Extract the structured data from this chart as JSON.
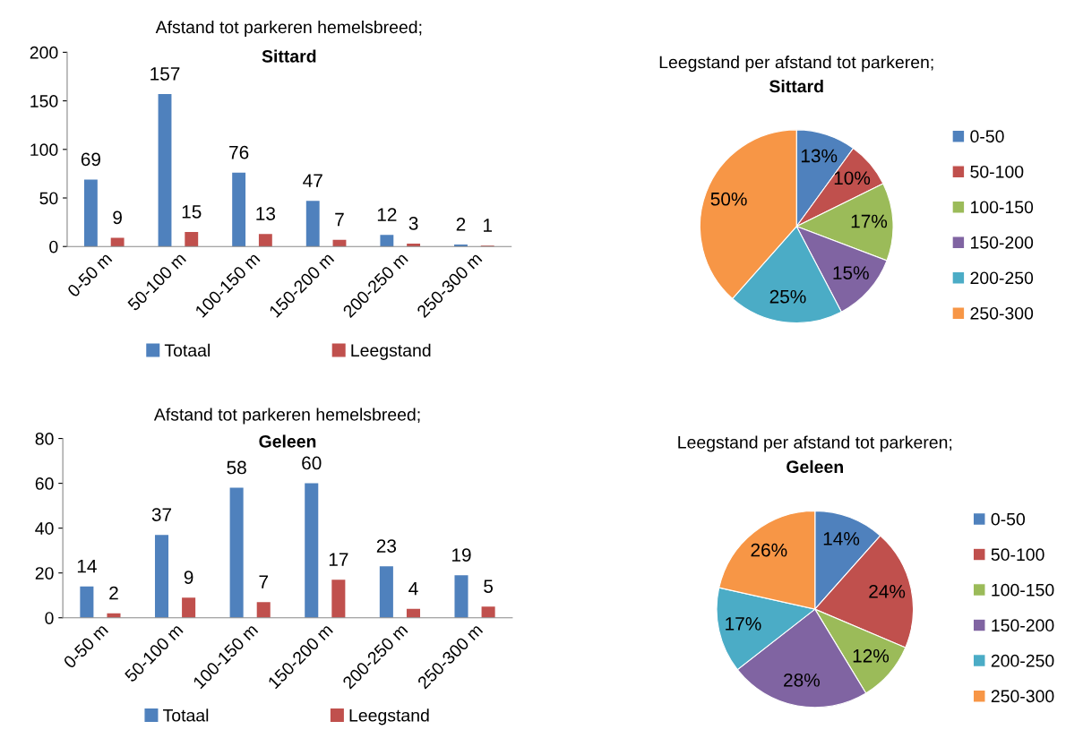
{
  "chart_data": [
    {
      "type": "bar",
      "title": "Afstand tot parkeren hemelsbreed;",
      "subtitle": "Sittard",
      "categories": [
        "0-50 m",
        "50-100 m",
        "100-150 m",
        "150-200 m",
        "200-250 m",
        "250-300 m"
      ],
      "series": [
        {
          "name": "Totaal",
          "color": "#4f81bd",
          "values": [
            69,
            157,
            76,
            47,
            12,
            2
          ]
        },
        {
          "name": "Leegstand",
          "color": "#c0504d",
          "values": [
            9,
            15,
            13,
            7,
            3,
            1
          ]
        }
      ],
      "ylim": [
        0,
        200
      ],
      "yticks": [
        0,
        50,
        100,
        150,
        200
      ],
      "data_labels": true,
      "legend": "bottom",
      "grid": false
    },
    {
      "type": "pie",
      "title": "Leegstand per afstand tot parkeren;",
      "subtitle": "Sittard",
      "categories": [
        "0-50",
        "50-100",
        "100-150",
        "150-200",
        "200-250",
        "250-300"
      ],
      "values": [
        13,
        10,
        17,
        15,
        25,
        50
      ],
      "value_labels": [
        "13%",
        "10%",
        "17%",
        "15%",
        "25%",
        "50%"
      ],
      "colors": [
        "#4f81bd",
        "#c0504d",
        "#9bbb59",
        "#8064a2",
        "#4bacc6",
        "#f79646"
      ],
      "legend": "right"
    },
    {
      "type": "bar",
      "title": "Afstand tot parkeren hemelsbreed;",
      "subtitle": "Geleen",
      "categories": [
        "0-50 m",
        "50-100 m",
        "100-150 m",
        "150-200 m",
        "200-250 m",
        "250-300 m"
      ],
      "series": [
        {
          "name": "Totaal",
          "color": "#4f81bd",
          "values": [
            14,
            37,
            58,
            60,
            23,
            19
          ]
        },
        {
          "name": "Leegstand",
          "color": "#c0504d",
          "values": [
            2,
            9,
            7,
            17,
            4,
            5
          ]
        }
      ],
      "ylim": [
        0,
        80
      ],
      "yticks": [
        0,
        20,
        40,
        60,
        80
      ],
      "data_labels": true,
      "legend": "bottom",
      "grid": false
    },
    {
      "type": "pie",
      "title": "Leegstand per afstand tot parkeren;",
      "subtitle": "Geleen",
      "categories": [
        "0-50",
        "50-100",
        "100-150",
        "150-200",
        "200-250",
        "250-300"
      ],
      "values": [
        14,
        24,
        12,
        28,
        17,
        26
      ],
      "value_labels": [
        "14%",
        "24%",
        "12%",
        "28%",
        "17%",
        "26%"
      ],
      "colors": [
        "#4f81bd",
        "#c0504d",
        "#9bbb59",
        "#8064a2",
        "#4bacc6",
        "#f79646"
      ],
      "legend": "right"
    }
  ]
}
